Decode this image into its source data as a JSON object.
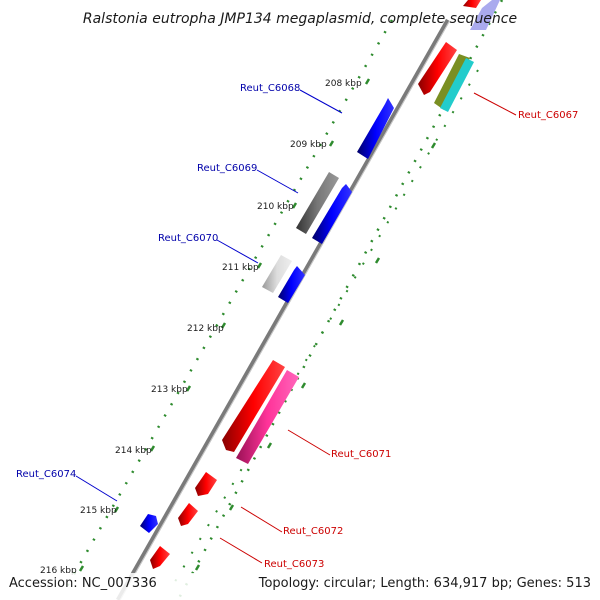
{
  "title": "Ralstonia eutropha JMP134 megaplasmid, complete sequence",
  "footer": {
    "accession": "Accession: NC_007336",
    "summary": "Topology: circular; Length: 634,917 bp; Genes: 513"
  },
  "ruler": {
    "ticks": [
      "208 kbp",
      "209 kbp",
      "210 kbp",
      "211 kbp",
      "212 kbp",
      "213 kbp",
      "214 kbp",
      "215 kbp",
      "216 kbp"
    ]
  },
  "genes": {
    "left": [
      "Reut_C6068",
      "Reut_C6069",
      "Reut_C6070",
      "Reut_C6074"
    ],
    "right": [
      "Reut_C6067",
      "Reut_C6071",
      "Reut_C6072",
      "Reut_C6073"
    ]
  },
  "colors": {
    "forward_label": "#0000aa",
    "reverse_label": "#cc0000",
    "backbone": "#777777",
    "dotted_track": "#2e8b2e"
  }
}
